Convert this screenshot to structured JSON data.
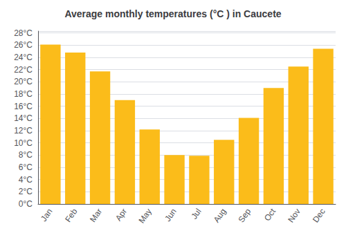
{
  "chart_data": {
    "type": "bar",
    "title": "Average monthly temperatures (°C ) in Caucete",
    "categories": [
      "Jan",
      "Feb",
      "Mar",
      "Apr",
      "May",
      "Jun",
      "Jul",
      "Aug",
      "Sep",
      "Oct",
      "Nov",
      "Dec"
    ],
    "values": [
      26.1,
      24.8,
      21.7,
      17.0,
      12.2,
      8.0,
      7.9,
      10.5,
      14.1,
      19.0,
      22.5,
      25.4
    ],
    "color": "#FBBC1A",
    "ylim": [
      0,
      28.3
    ],
    "yticks": [
      {
        "value": 0,
        "label": "0°C"
      },
      {
        "value": 2,
        "label": "2°C"
      },
      {
        "value": 4,
        "label": "4°C"
      },
      {
        "value": 6,
        "label": "6°C"
      },
      {
        "value": 8,
        "label": "8°C"
      },
      {
        "value": 10,
        "label": "10°C"
      },
      {
        "value": 12,
        "label": "12°C"
      },
      {
        "value": 14,
        "label": "14°C"
      },
      {
        "value": 16,
        "label": "16°C"
      },
      {
        "value": 18,
        "label": "18°C"
      },
      {
        "value": 20,
        "label": "20°C"
      },
      {
        "value": 22,
        "label": "22°C"
      },
      {
        "value": 24,
        "label": "24°C"
      },
      {
        "value": 26,
        "label": "26°C"
      },
      {
        "value": 28,
        "label": "28°C"
      }
    ],
    "grid": true
  }
}
